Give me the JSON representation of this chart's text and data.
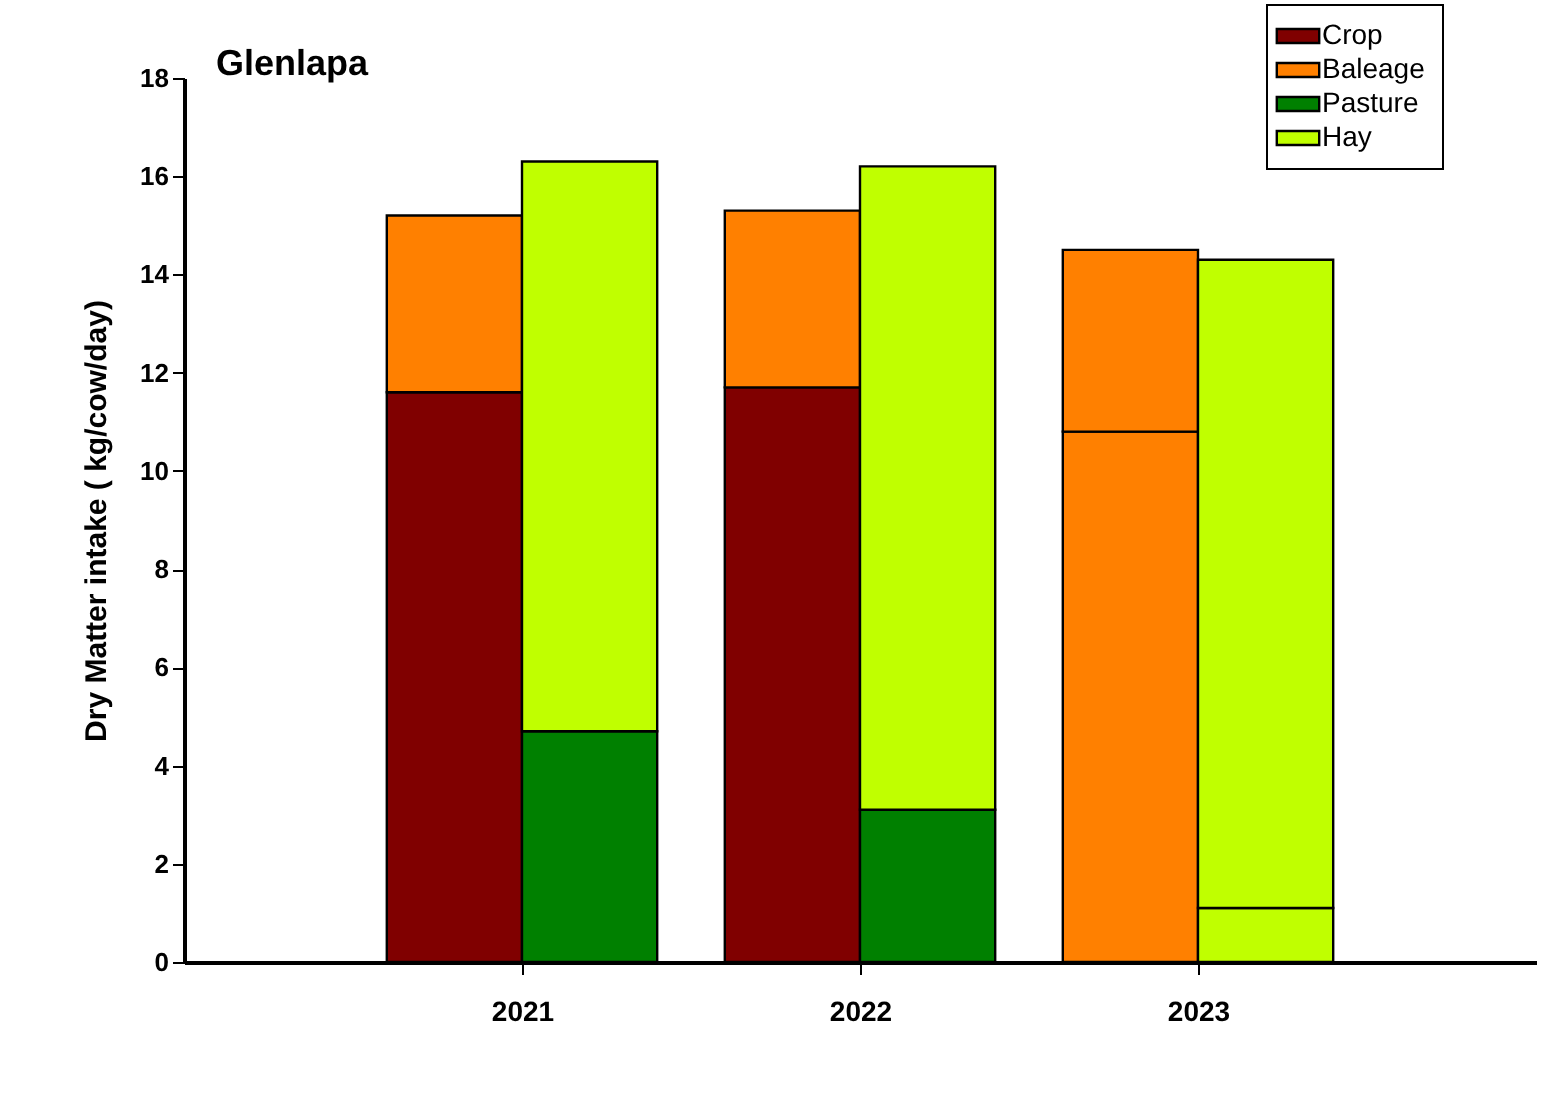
{
  "chart_data": {
    "type": "bar",
    "title": "Glenlapa",
    "ylabel": "Dry Matter intake ( kg/cow/day)",
    "xlim": [
      2020,
      2024
    ],
    "xticks": [
      2021,
      2022,
      2023
    ],
    "ylim": [
      0,
      18
    ],
    "yticks": [
      0,
      2,
      4,
      6,
      8,
      10,
      12,
      14,
      16,
      18
    ],
    "grid": false,
    "legend": "top right",
    "series": [
      {
        "name": "Crop",
        "color": "#800000",
        "x": [
          2020.8,
          2021.8
        ],
        "base": [
          0,
          0
        ],
        "values": [
          11.6,
          11.7
        ]
      },
      {
        "name": "Baleage",
        "color": "#ff8000",
        "x": [
          2020.8,
          2021.8,
          2022.8
        ],
        "base": [
          11.6,
          11.7,
          0
        ],
        "values": [
          3.6,
          3.6,
          10.8
        ]
      },
      {
        "color": "#ff8000",
        "x": [
          2022.8
        ],
        "base": [
          10.8
        ],
        "values": [
          3.7
        ]
      },
      {
        "name": "Pasture",
        "color": "#008000",
        "x": [
          2021.2,
          2022.2
        ],
        "base": [
          0,
          0
        ],
        "values": [
          4.7,
          3.1
        ]
      },
      {
        "name": "Hay",
        "color": "#c0ff00",
        "x": [
          2021.2,
          2022.2,
          2023.2
        ],
        "base": [
          4.7,
          3.1,
          0
        ],
        "values": [
          11.6,
          13.1,
          1.1
        ]
      },
      {
        "color": "#c0ff00",
        "x": [
          2023.2
        ],
        "base": [
          1.1
        ],
        "values": [
          13.2
        ]
      }
    ]
  }
}
